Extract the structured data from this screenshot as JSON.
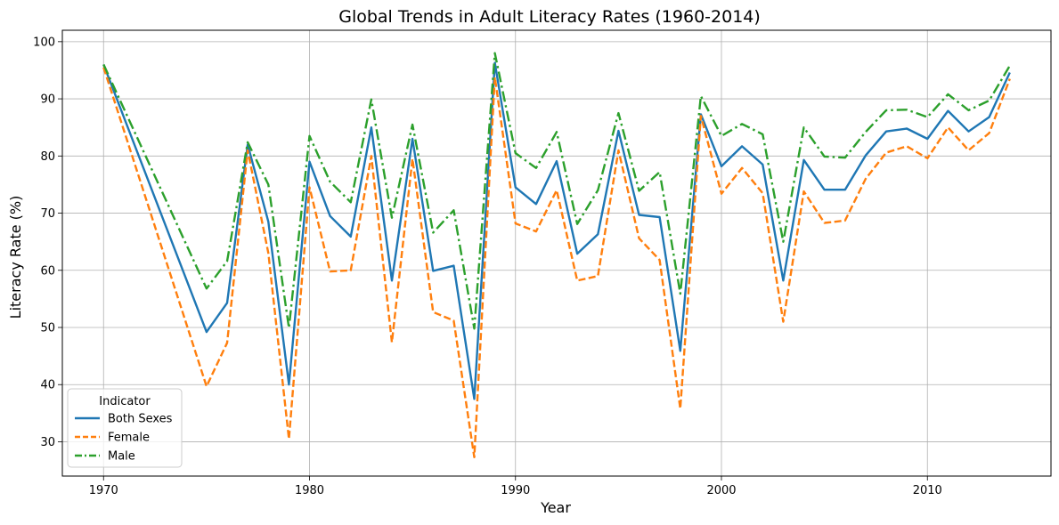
{
  "chart_data": {
    "type": "line",
    "title": "Global Trends in Adult Literacy Rates (1960-2014)",
    "xlabel": "Year",
    "ylabel": "Literacy Rate (%)",
    "xlim": [
      1968,
      2016
    ],
    "ylim": [
      24,
      102
    ],
    "xticks": [
      1970,
      1980,
      1990,
      2000,
      2010
    ],
    "yticks": [
      30,
      40,
      50,
      60,
      70,
      80,
      90,
      100
    ],
    "grid": true,
    "legend_title": "Indicator",
    "legend_position": "lower-left",
    "x": [
      1970,
      1975,
      1976,
      1977,
      1978,
      1979,
      1980,
      1981,
      1982,
      1983,
      1984,
      1985,
      1986,
      1987,
      1988,
      1989,
      1990,
      1991,
      1992,
      1993,
      1994,
      1995,
      1996,
      1997,
      1998,
      1999,
      2000,
      2001,
      2002,
      2003,
      2004,
      2005,
      2006,
      2007,
      2008,
      2009,
      2010,
      2011,
      2012,
      2013,
      2014
    ],
    "series": [
      {
        "name": "Both Sexes",
        "color": "#1f77b4",
        "dash": "solid",
        "values": [
          96.0,
          49.2,
          54.3,
          82.0,
          68.5,
          40.0,
          79.0,
          69.5,
          65.9,
          85.0,
          58.2,
          83.0,
          59.9,
          60.8,
          37.5,
          96.3,
          74.5,
          71.6,
          79.1,
          62.9,
          66.3,
          84.4,
          69.7,
          69.3,
          45.9,
          87.3,
          78.2,
          81.7,
          78.5,
          58.2,
          79.3,
          74.1,
          74.1,
          80.1,
          84.3,
          84.8,
          83.0,
          87.9,
          84.3,
          86.8,
          94.6
        ]
      },
      {
        "name": "Female",
        "color": "#ff7f0e",
        "dash": "dashed",
        "values": [
          95.5,
          39.7,
          47.3,
          81.0,
          63.0,
          30.5,
          74.5,
          59.8,
          60.0,
          80.0,
          47.4,
          79.5,
          52.7,
          51.2,
          27.3,
          93.8,
          68.2,
          66.8,
          74.0,
          58.2,
          59.0,
          81.0,
          65.6,
          61.8,
          35.8,
          87.0,
          73.4,
          77.9,
          73.5,
          51.0,
          73.8,
          68.3,
          68.7,
          76.0,
          80.6,
          81.7,
          79.6,
          85.0,
          81.0,
          84.0,
          93.5
        ]
      },
      {
        "name": "Male",
        "color": "#2ca02c",
        "dash": "dashdot",
        "values": [
          96.0,
          56.8,
          61.6,
          82.4,
          75.0,
          49.9,
          83.5,
          75.5,
          71.9,
          89.9,
          69.2,
          85.5,
          66.6,
          70.5,
          49.8,
          98.0,
          80.5,
          77.9,
          84.2,
          68.1,
          74.0,
          87.5,
          73.9,
          77.2,
          55.9,
          90.5,
          83.5,
          85.6,
          83.8,
          65.0,
          85.0,
          79.9,
          79.7,
          84.2,
          88.0,
          88.1,
          86.8,
          90.8,
          88.0,
          89.7,
          95.8
        ]
      }
    ]
  }
}
